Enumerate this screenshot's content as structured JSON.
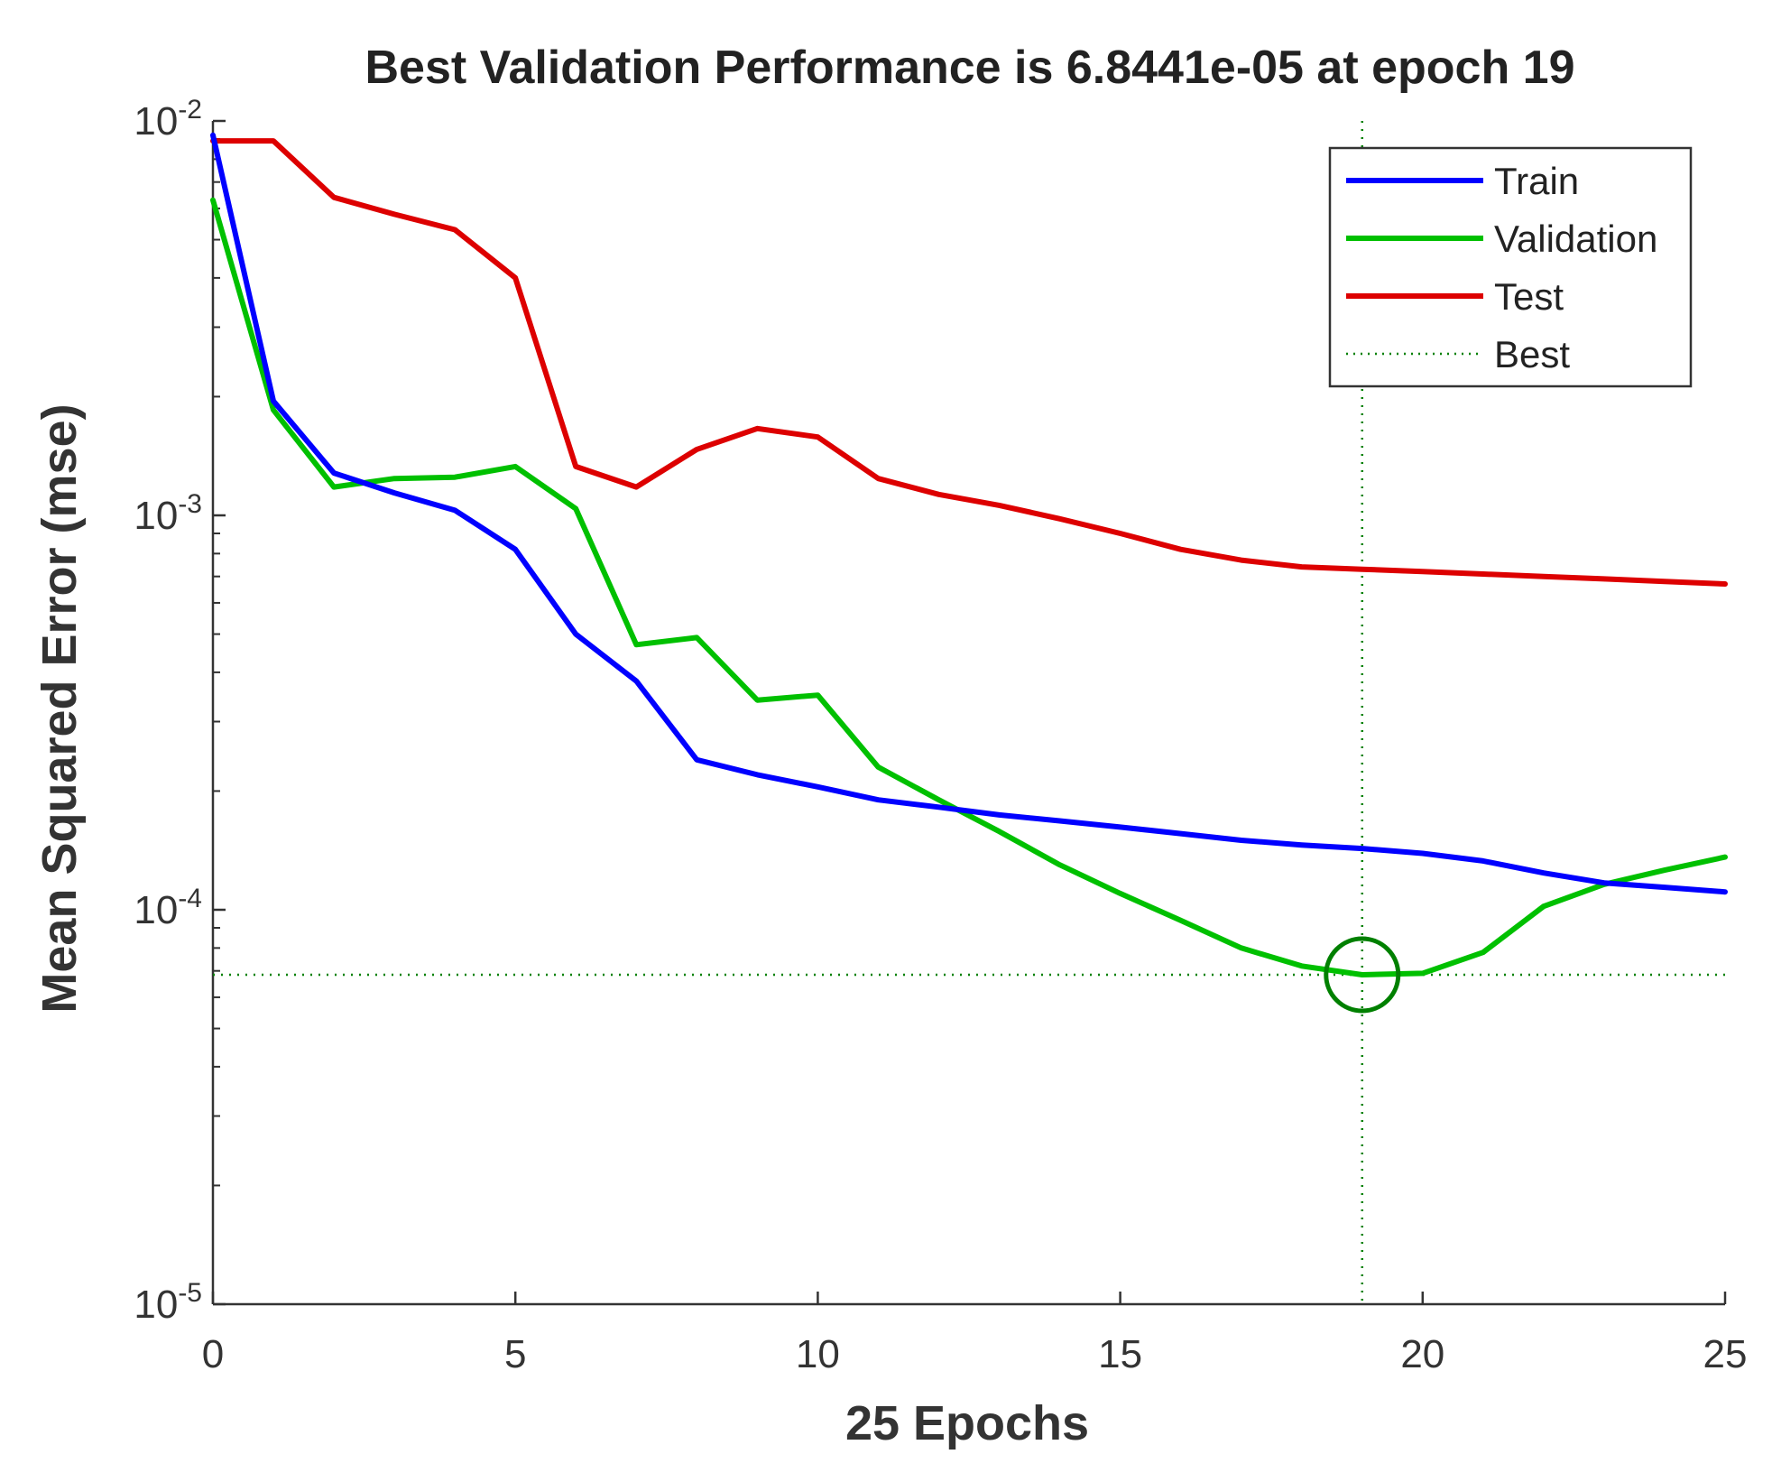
{
  "chart_data": {
    "type": "line",
    "title": "Best Validation Performance is 6.8441e-05 at epoch 19",
    "xlabel": "25 Epochs",
    "ylabel": "Mean Squared Error  (mse)",
    "xlim": [
      0,
      25
    ],
    "ylim": [
      1e-05,
      0.01
    ],
    "yscale": "log",
    "x_ticks": [
      0,
      5,
      10,
      15,
      20,
      25
    ],
    "y_ticks": [
      {
        "base": "10",
        "exp": "-5",
        "value": 1e-05
      },
      {
        "base": "10",
        "exp": "-4",
        "value": 0.0001
      },
      {
        "base": "10",
        "exp": "-3",
        "value": 0.001
      },
      {
        "base": "10",
        "exp": "-2",
        "value": 0.01
      }
    ],
    "x": [
      0,
      1,
      2,
      3,
      4,
      5,
      6,
      7,
      8,
      9,
      10,
      11,
      12,
      13,
      14,
      15,
      16,
      17,
      18,
      19,
      20,
      21,
      22,
      23,
      24,
      25
    ],
    "series": [
      {
        "name": "Train",
        "color": "#0000ff",
        "values": [
          0.0092,
          0.00195,
          0.00128,
          0.00114,
          0.00103,
          0.00082,
          0.0005,
          0.00038,
          0.00024,
          0.00022,
          0.000205,
          0.00019,
          0.000182,
          0.000174,
          0.000168,
          0.000162,
          0.000156,
          0.00015,
          0.000146,
          0.000143,
          0.000139,
          0.000133,
          0.000124,
          0.000117,
          0.000114,
          0.000111
        ]
      },
      {
        "name": "Validation",
        "color": "#00c000",
        "values": [
          0.0063,
          0.00185,
          0.00118,
          0.00124,
          0.00125,
          0.00133,
          0.00104,
          0.00047,
          0.00049,
          0.00034,
          0.00035,
          0.00023,
          0.00019,
          0.000158,
          0.00013,
          0.00011,
          9.4e-05,
          8e-05,
          7.2e-05,
          6.8441e-05,
          6.9e-05,
          7.8e-05,
          0.000102,
          0.000116,
          0.000126,
          0.000136
        ]
      },
      {
        "name": "Test",
        "color": "#dd0000",
        "values": [
          0.0089,
          0.0089,
          0.0064,
          0.0058,
          0.0053,
          0.004,
          0.00133,
          0.00118,
          0.00147,
          0.00166,
          0.00158,
          0.00124,
          0.00113,
          0.00106,
          0.00098,
          0.0009,
          0.00082,
          0.00077,
          0.00074,
          0.00073,
          0.00072,
          0.00071,
          0.0007,
          0.00069,
          0.00068,
          0.00067
        ]
      }
    ],
    "best": {
      "name": "Best",
      "epoch": 19,
      "value": 6.8441e-05,
      "color": "#008000"
    },
    "legend": {
      "position": "top-right",
      "entries": [
        "Train",
        "Validation",
        "Test",
        "Best"
      ]
    },
    "grid": false
  }
}
